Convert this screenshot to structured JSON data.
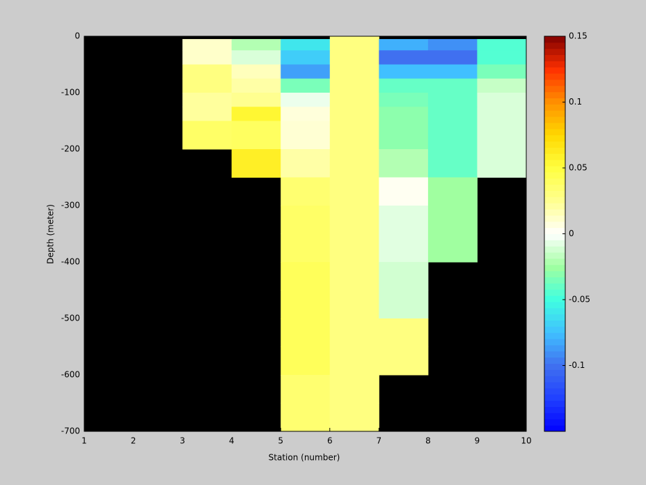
{
  "chart_data": {
    "type": "heatmap",
    "x_label": "Station (number)",
    "y_label": "Depth (meter)",
    "x": [
      1,
      2,
      3,
      4,
      5,
      6,
      7,
      8,
      9,
      10
    ],
    "y_edges": [
      0,
      -5,
      -25,
      -50,
      -75,
      -100,
      -125,
      -150,
      -200,
      -250,
      -300,
      -350,
      -400,
      -450,
      -500,
      -550,
      -600,
      -650,
      -700
    ],
    "values": [
      [
        null,
        null,
        null,
        null,
        null,
        0.03,
        null,
        null,
        null
      ],
      [
        null,
        null,
        0.012,
        -0.02,
        -0.06,
        0.03,
        -0.08,
        -0.09,
        -0.045
      ],
      [
        null,
        null,
        0.012,
        -0.01,
        -0.07,
        0.03,
        -0.1,
        -0.1,
        -0.045
      ],
      [
        null,
        null,
        0.03,
        0.015,
        -0.085,
        0.03,
        -0.075,
        -0.075,
        -0.035
      ],
      [
        null,
        null,
        0.03,
        0.02,
        -0.035,
        0.03,
        -0.04,
        -0.04,
        -0.015
      ],
      [
        null,
        null,
        0.022,
        0.025,
        -0.005,
        0.03,
        -0.035,
        -0.04,
        -0.01
      ],
      [
        null,
        null,
        0.022,
        0.055,
        0.008,
        0.03,
        -0.03,
        -0.04,
        -0.01
      ],
      [
        null,
        null,
        0.038,
        0.04,
        0.01,
        0.03,
        -0.03,
        -0.04,
        -0.01
      ],
      [
        null,
        null,
        null,
        0.06,
        0.02,
        0.03,
        -0.02,
        -0.04,
        -0.01
      ],
      [
        null,
        null,
        null,
        null,
        0.035,
        0.03,
        0.003,
        -0.025,
        null
      ],
      [
        null,
        null,
        null,
        null,
        0.038,
        0.03,
        -0.008,
        -0.025,
        null
      ],
      [
        null,
        null,
        null,
        null,
        0.038,
        0.03,
        -0.008,
        -0.025,
        null
      ],
      [
        null,
        null,
        null,
        null,
        0.042,
        0.03,
        -0.012,
        null,
        null
      ],
      [
        null,
        null,
        null,
        null,
        0.042,
        0.03,
        -0.012,
        null,
        null
      ],
      [
        null,
        null,
        null,
        null,
        0.042,
        0.03,
        0.03,
        null,
        null
      ],
      [
        null,
        null,
        null,
        null,
        0.042,
        0.03,
        0.03,
        null,
        null
      ],
      [
        null,
        null,
        null,
        null,
        0.035,
        0.03,
        null,
        null,
        null
      ],
      [
        null,
        null,
        null,
        null,
        0.035,
        0.03,
        null,
        null,
        null
      ]
    ],
    "xlim": [
      1,
      10
    ],
    "xticks": [
      1,
      2,
      3,
      4,
      5,
      6,
      7,
      8,
      9,
      10
    ],
    "ylim": [
      -700,
      0
    ],
    "yticks": [
      0,
      -100,
      -200,
      -300,
      -400,
      -500,
      -600,
      -700
    ],
    "clim": [
      -0.15,
      0.15
    ],
    "cticks": [
      0.15,
      0.1,
      0.05,
      0,
      -0.05,
      -0.1
    ],
    "colormap": [
      "#0000ff",
      "#2040ff",
      "#4070f0",
      "#40c0ff",
      "#40ffe0",
      "#a0ffa0",
      "#ffffff",
      "#ffff90",
      "#ffff40",
      "#ffd800",
      "#ff9000",
      "#ff3000",
      "#800000"
    ],
    "nan_color": "#000000"
  }
}
